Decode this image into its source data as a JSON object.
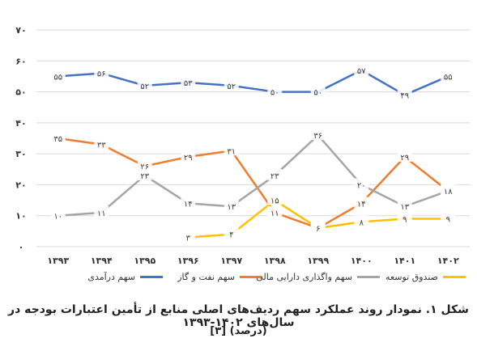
{
  "chart_data": {
    "type": "line",
    "categories": [
      "۱۳۹۳",
      "۱۳۹۴",
      "۱۳۹۵",
      "۱۳۹۶",
      "۱۳۹۷",
      "۱۳۹۸",
      "۱۳۹۹",
      "۱۴۰۰",
      "۱۴۰۱",
      "۱۴۰۲"
    ],
    "y_tick_labels": [
      "۰",
      "۱۰",
      "۲۰",
      "۳۰",
      "۴۰",
      "۵۰",
      "۶۰",
      "۷۰"
    ],
    "y_tick_values": [
      0,
      10,
      20,
      30,
      40,
      50,
      60,
      70
    ],
    "ylim": [
      0,
      70
    ],
    "grid": "horizontal",
    "legend_position": "bottom",
    "series": [
      {
        "name": "سهم درآمدی",
        "color": "#4472C4",
        "values": [
          55,
          56,
          52,
          53,
          52,
          50,
          50,
          57,
          49,
          55
        ],
        "labels": [
          "۵۵",
          "۵۶",
          "۵۲",
          "۵۳",
          "۵۲",
          "۵۰",
          "۵۰",
          "۵۷",
          "۴۹",
          "۵۵"
        ]
      },
      {
        "name": "سهم نفت و گاز",
        "color": "#ED7D31",
        "values": [
          35,
          33,
          26,
          29,
          31,
          11,
          6,
          14,
          29,
          18
        ],
        "labels": [
          "۳۵",
          "۳۳",
          "۲۶",
          "۲۹",
          "۳۱",
          "۱۱",
          "۶",
          "۱۴",
          "۲۹",
          "۱۸"
        ]
      },
      {
        "name": "سهم واگذاری دارایی مالی",
        "color": "#A5A5A5",
        "values": [
          10,
          11,
          23,
          14,
          13,
          23,
          36,
          20,
          13,
          18
        ],
        "labels": [
          "۱۰",
          "۱۱",
          "۲۳",
          "۱۴",
          "۱۳",
          "۲۳",
          "۳۶",
          "۲۰",
          "۱۳",
          "۱۸"
        ]
      },
      {
        "name": "صندوق توسعه",
        "color": "#FFC000",
        "values": [
          null,
          null,
          null,
          3,
          4,
          15,
          6,
          8,
          9,
          9
        ],
        "labels": [
          "",
          "",
          "",
          "۳",
          "۴",
          "۱۵",
          "۶",
          "۸",
          "۹",
          "۹"
        ]
      }
    ]
  },
  "caption": {
    "line1": "شکل ۱. نمودار روند عملکرد سهم ردیف‌های اصلی منابع از تأمین اعتبارات بودجه در سال‌های ۱۴۰۲-۱۳۹۳",
    "line2": "(درصد) [۳]"
  }
}
